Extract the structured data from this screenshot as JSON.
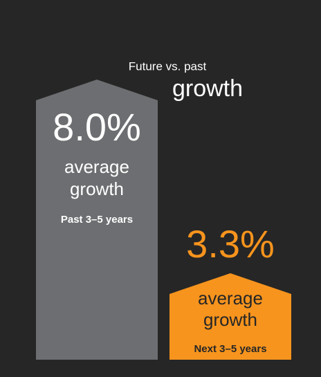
{
  "title": {
    "line1": "Future vs. past",
    "line2": "growth"
  },
  "panels": [
    {
      "value": "8.0%",
      "caption": [
        "average",
        "growth"
      ],
      "period": "Past 3–5 years"
    },
    {
      "value": "3.3%",
      "caption": [
        "average",
        "growth"
      ],
      "period": "Next 3–5 years"
    }
  ]
}
